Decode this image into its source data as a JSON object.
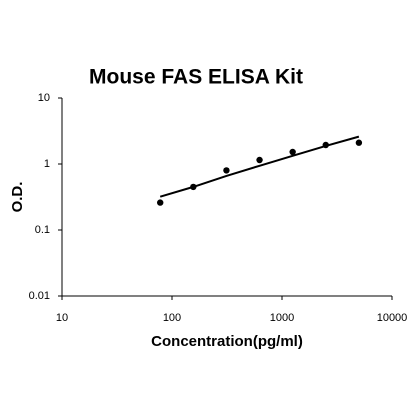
{
  "chart_data": {
    "type": "scatter",
    "title": "Mouse FAS ELISA Kit",
    "x_label": "Concentration(pg/ml)",
    "y_label": "O.D.",
    "x_log": true,
    "y_log": true,
    "xlim": [
      10,
      10000
    ],
    "ylim": [
      0.01,
      10
    ],
    "xticks": [
      10,
      100,
      1000,
      10000
    ],
    "yticks": [
      0.01,
      0.1,
      1,
      10
    ],
    "series": [
      {
        "kind": "points",
        "color": "#000000",
        "x": [
          78.125,
          156.25,
          312.5,
          625,
          1250,
          2500,
          5000
        ],
        "values": [
          0.26,
          0.45,
          0.8,
          1.15,
          1.52,
          1.94,
          2.1
        ]
      },
      {
        "kind": "line",
        "color": "#000000",
        "x": [
          78.125,
          156.25,
          312.5,
          625,
          1250,
          2500,
          5000
        ],
        "values": [
          0.32,
          0.45,
          0.66,
          0.94,
          1.33,
          1.88,
          2.6
        ]
      }
    ]
  }
}
